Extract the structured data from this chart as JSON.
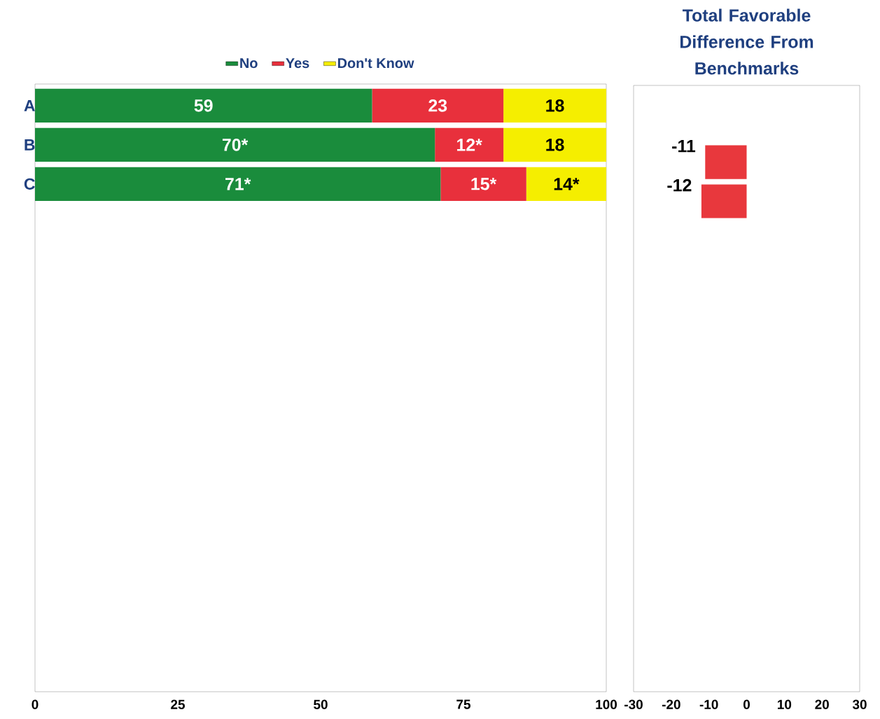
{
  "chart_data": [
    {
      "type": "bar",
      "orientation": "horizontal",
      "stacked": true,
      "categories": [
        "A",
        "B",
        "C",
        null,
        null,
        null,
        null,
        null,
        null,
        null,
        null,
        null,
        null,
        null,
        null
      ],
      "xlim": [
        0,
        100
      ],
      "xticks": [
        0,
        25,
        50,
        75,
        100
      ],
      "legend": "top",
      "series": [
        {
          "name": "No",
          "color": "#1a8c3c",
          "values": [
            59,
            70,
            71,
            null,
            null,
            null,
            null,
            null,
            null,
            null,
            null,
            null,
            null,
            null,
            null
          ],
          "value_labels": [
            "59",
            "70*",
            "71*",
            null,
            null,
            null,
            null,
            null,
            null,
            null,
            null,
            null,
            null,
            null,
            null
          ]
        },
        {
          "name": "Yes",
          "color": "#e8303c",
          "values": [
            23,
            12,
            15,
            null,
            null,
            null,
            null,
            null,
            null,
            null,
            null,
            null,
            null,
            null,
            null
          ],
          "value_labels": [
            "23",
            "12*",
            "15*",
            null,
            null,
            null,
            null,
            null,
            null,
            null,
            null,
            null,
            null,
            null,
            null
          ]
        },
        {
          "name": "Don't Know",
          "color": "#f5ee00",
          "values": [
            18,
            18,
            14,
            null,
            null,
            null,
            null,
            null,
            null,
            null,
            null,
            null,
            null,
            null,
            null
          ],
          "value_labels": [
            "18",
            "18",
            "14*",
            null,
            null,
            null,
            null,
            null,
            null,
            null,
            null,
            null,
            null,
            null,
            null
          ]
        }
      ]
    },
    {
      "type": "bar",
      "orientation": "horizontal",
      "title": "Total Favorable Difference From Benchmarks",
      "categories": [
        null,
        null,
        null,
        null,
        null,
        null,
        null,
        null,
        null,
        null,
        null,
        null,
        null,
        null,
        null
      ],
      "tick_labels": "x",
      "xlim": [
        -30,
        30
      ],
      "xticks": [
        -30,
        -20,
        -10,
        0,
        10,
        20,
        30
      ],
      "color": "#e8383d",
      "values": [
        null,
        -11,
        -12,
        null,
        null,
        null,
        null,
        null,
        null,
        null,
        null,
        null,
        null,
        null,
        null
      ],
      "value_labels": [
        null,
        "-11",
        "-12",
        null,
        null,
        null,
        null,
        null,
        null,
        null,
        null,
        null,
        null,
        null,
        null
      ]
    }
  ]
}
